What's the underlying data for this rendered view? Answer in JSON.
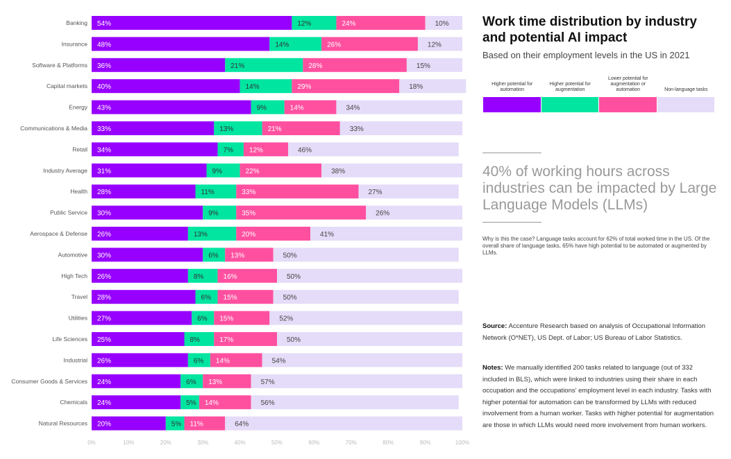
{
  "chart_data": {
    "type": "bar",
    "orientation": "horizontal",
    "stacked": true,
    "categories": [
      "Banking",
      "Insurance",
      "Software & Platforms",
      "Capital markets",
      "Energy",
      "Communications & Media",
      "Retail",
      "Industry Average",
      "Health",
      "Public Service",
      "Aerospace & Defense",
      "Automotive",
      "High Tech",
      "Travel",
      "Utilities",
      "Life Sciences",
      "Industrial",
      "Consumer Goods & Services",
      "Chemicals",
      "Natural Resources"
    ],
    "series": [
      {
        "name": "Higher potential for automation",
        "color": "#9700FF",
        "label_color": "#ffffff",
        "values": [
          54,
          48,
          36,
          40,
          43,
          33,
          34,
          31,
          28,
          30,
          26,
          30,
          26,
          28,
          27,
          25,
          26,
          24,
          24,
          20
        ]
      },
      {
        "name": "Higher potential for augmentation",
        "color": "#00E5A0",
        "label_color": "#333333",
        "values": [
          12,
          14,
          21,
          14,
          9,
          13,
          7,
          9,
          11,
          9,
          13,
          6,
          8,
          6,
          6,
          8,
          6,
          6,
          5,
          5
        ]
      },
      {
        "name": "Lower potential for augmentation or automation",
        "color": "#FF50A0",
        "label_color": "#ffffff",
        "values": [
          24,
          26,
          28,
          29,
          14,
          21,
          12,
          22,
          33,
          35,
          20,
          13,
          16,
          15,
          15,
          17,
          14,
          13,
          14,
          11
        ]
      },
      {
        "name": "Non-language tasks",
        "color": "#E4DCF8",
        "label_color": "#444444",
        "values": [
          10,
          12,
          15,
          18,
          34,
          33,
          46,
          38,
          27,
          26,
          41,
          50,
          50,
          50,
          52,
          50,
          54,
          57,
          56,
          64
        ]
      }
    ],
    "x_ticks": [
      "0%",
      "10%",
      "20%",
      "30%",
      "40%",
      "50%",
      "60%",
      "70%",
      "80%",
      "90%",
      "100%"
    ],
    "xlim": [
      0,
      100
    ],
    "title": "Work time distribution by industry and potential AI impact",
    "subtitle": "Based on their employment levels in the US in 2021"
  },
  "legend": [
    {
      "label": "Higher potential for automation",
      "color": "#9700FF"
    },
    {
      "label": "Higher potential for augmentation",
      "color": "#00E5A0"
    },
    {
      "label": "Lower potential for augmentation or automation",
      "color": "#FF50A0"
    },
    {
      "label": "Non-language tasks",
      "color": "#E4DCF8"
    }
  ],
  "text": {
    "title": "Work time distribution by industry and potential AI impact",
    "subtitle": "Based on their employment levels in the US in 2021",
    "big_stat": "40% of working hours across industries can be impacted by Large Language Models (LLMs)",
    "why": "Why is this the case? Language tasks account for 62% of total worked time in the US. Of the overall share of language tasks, 65% have high potential to be automated or augmented by LLMs.",
    "source_label": "Source:",
    "source": "Accenture Research based on analysis of Occupational Information Network (O*NET), US Dept. of Labor; US Bureau of Labor Statistics.",
    "notes_label": "Notes:",
    "notes": "We manually identified 200 tasks related to language (out of 332 included in BLS), which were linked to industries using their share in each occupation and the occupations' employment level in each industry. Tasks with higher potential for automation can be transformed by LLMs with reduced involvement from a human worker. Tasks with higher potential for augmentation are those in which LLMs would need more involvement from human workers."
  }
}
